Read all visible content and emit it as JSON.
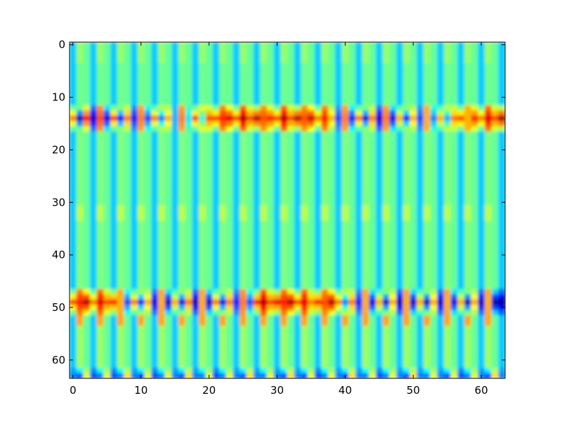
{
  "chart_data": {
    "type": "heatmap",
    "title": "",
    "xlabel": "",
    "ylabel": "",
    "colormap": "jet",
    "interpolation": "bilinear",
    "value_range": [
      -1,
      1
    ],
    "grid": false,
    "legend": "none",
    "xlim": [
      -0.5,
      63.5
    ],
    "ylim": [
      63.5,
      -0.5
    ],
    "y_axis_inverted": true,
    "shape": {
      "rows": 64,
      "cols": 64
    },
    "xticks": [
      0,
      10,
      20,
      30,
      40,
      50,
      60
    ],
    "yticks": [
      0,
      10,
      20,
      30,
      40,
      50,
      60
    ],
    "xtick_labels": [
      "0",
      "10",
      "20",
      "30",
      "40",
      "50",
      "60"
    ],
    "ytick_labels": [
      "0",
      "10",
      "20",
      "30",
      "40",
      "50",
      "60"
    ],
    "background_value": -0.05,
    "column_period": 3,
    "row_band_values": [
      {
        "rows": [
          0,
          3
        ],
        "value": 0.08
      },
      {
        "rows": [
          4,
          11
        ],
        "value": -0.05
      },
      {
        "rows": [
          12,
          16
        ],
        "value": 0.65
      },
      {
        "rows": [
          17,
          30
        ],
        "value": 0.0
      },
      {
        "rows": [
          31,
          33
        ],
        "value": 0.2
      },
      {
        "rows": [
          34,
          46
        ],
        "value": 0.0
      },
      {
        "rows": [
          47,
          53
        ],
        "value": 0.7
      },
      {
        "rows": [
          54,
          63
        ],
        "value": 0.1
      }
    ],
    "bands": [
      {
        "center_row": 14,
        "halfwidth": 2,
        "column_values": [
          0.5,
          -0.9,
          0.7,
          -0.85,
          0.6,
          -0.8,
          0.6,
          -0.75,
          0.5,
          -0.7,
          0.5,
          -0.6,
          0.5,
          -0.5,
          0.4,
          -0.4,
          0.5,
          -0.3,
          0.6,
          -0.2,
          0.6,
          0.6,
          0.7,
          0.8,
          0.6,
          0.9,
          0.6,
          0.9,
          0.6,
          0.7,
          0.6,
          0.9,
          0.6,
          0.9,
          0.6,
          0.85,
          0.5,
          0.7,
          0.4,
          -0.6,
          0.5,
          -0.7,
          0.5,
          -0.8,
          0.5,
          -0.85,
          0.5,
          -0.8,
          0.4,
          -0.7,
          0.4,
          -0.6,
          0.4,
          -0.5,
          0.4,
          -0.4,
          0.5,
          0.6,
          0.4,
          0.7,
          0.5,
          0.8,
          0.6,
          0.95
        ]
      },
      {
        "center_row": 49,
        "halfwidth": 2,
        "column_values": [
          0.6,
          0.7,
          0.9,
          0.5,
          0.8,
          0.6,
          0.7,
          0.4,
          -0.6,
          0.5,
          -0.7,
          0.4,
          -0.8,
          0.4,
          -0.85,
          0.4,
          -0.8,
          0.5,
          -0.9,
          0.4,
          -0.85,
          0.5,
          -0.8,
          0.5,
          -0.7,
          0.5,
          -0.6,
          0.7,
          0.9,
          0.6,
          0.8,
          0.7,
          0.9,
          0.6,
          0.8,
          0.5,
          0.7,
          0.6,
          0.9,
          0.5,
          -0.5,
          0.5,
          -0.7,
          0.4,
          -0.8,
          0.4,
          -0.85,
          0.4,
          -0.9,
          0.4,
          -0.85,
          0.4,
          -0.9,
          0.4,
          -0.85,
          0.4,
          -0.8,
          0.4,
          -0.9,
          0.4,
          -0.85,
          0.4,
          -0.9,
          -0.95
        ]
      },
      {
        "center_row": 63,
        "halfwidth": 1,
        "column_values": [
          -0.5,
          -0.6,
          0.2,
          -0.6,
          -0.5,
          0.2,
          -0.6,
          -0.5,
          0.3,
          -0.5,
          -0.6,
          0.2,
          -0.6,
          -0.5,
          0.2,
          -0.5,
          -0.6,
          0.3,
          -0.5,
          -0.5,
          0.2,
          -0.6,
          -0.5,
          0.2,
          -0.5,
          -0.6,
          0.3,
          -0.5,
          -0.5,
          0.2,
          -0.5,
          -0.6,
          0.3,
          -0.5,
          -0.6,
          0.2,
          -0.6,
          -0.5,
          0.2,
          -0.5,
          -0.6,
          0.3,
          -0.5,
          -0.5,
          0.2,
          -0.6,
          -0.5,
          0.2,
          -0.5,
          -0.6,
          0.3,
          -0.5,
          -0.5,
          0.2,
          -0.5,
          -0.6,
          0.2,
          -0.6,
          -0.5,
          0.2,
          -0.5,
          -0.6,
          0.3,
          -0.5
        ]
      }
    ]
  }
}
